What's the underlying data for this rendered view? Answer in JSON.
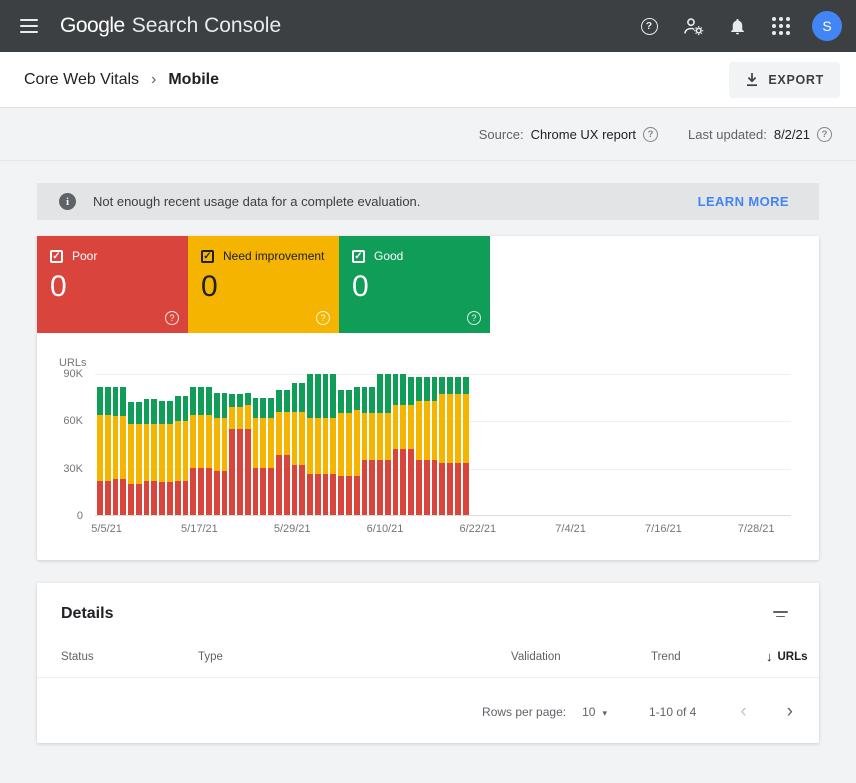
{
  "app_bar": {
    "logo_primary": "Google",
    "logo_secondary": "Search Console",
    "avatar_initial": "S",
    "icons": [
      "menu",
      "help",
      "manage-users",
      "notifications",
      "apps",
      "account-avatar"
    ]
  },
  "breadcrumb": {
    "section": "Core Web Vitals",
    "separator": "›",
    "page": "Mobile",
    "export_label": "EXPORT"
  },
  "meta": {
    "source_label": "Source:",
    "source_value": "Chrome UX report",
    "updated_label": "Last updated:",
    "updated_value": "8/2/21"
  },
  "banner": {
    "message": "Not enough recent usage data for a complete evaluation.",
    "action_label": "LEARN MORE"
  },
  "status_cards": [
    {
      "label": "Poor",
      "value": "0",
      "color": "#d9453d",
      "checked": true
    },
    {
      "label": "Need improvement",
      "value": "0",
      "color": "#f4b400",
      "checked": true
    },
    {
      "label": "Good",
      "value": "0",
      "color": "#0f9d58",
      "checked": true
    }
  ],
  "chart_data": {
    "type": "bar",
    "stacked": true,
    "ylabel": "URLs",
    "y_max": 90000,
    "y_ticks": [
      "90K",
      "60K",
      "30K",
      "0"
    ],
    "x_ticks": [
      "5/5/21",
      "5/17/21",
      "5/29/21",
      "6/10/21",
      "6/22/21",
      "7/4/21",
      "7/16/21",
      "7/28/21"
    ],
    "x_axis_days": 90,
    "x_tick_interval_days": 12,
    "bar_days": 48,
    "legend_position": "top-left-boxes",
    "grid": true,
    "series": [
      {
        "name": "Poor",
        "color": "#d9453d",
        "values": [
          22000,
          22000,
          23000,
          23000,
          20000,
          20000,
          22000,
          22000,
          21000,
          21000,
          22000,
          22000,
          30000,
          30000,
          30000,
          28000,
          28000,
          55000,
          55000,
          55000,
          30000,
          30000,
          30000,
          38000,
          38000,
          32000,
          32000,
          26000,
          26000,
          26000,
          26000,
          25000,
          25000,
          25000,
          35000,
          35000,
          35000,
          35000,
          42000,
          42000,
          42000,
          35000,
          35000,
          35000,
          33000,
          33000,
          33000,
          33000
        ]
      },
      {
        "name": "Need improvement",
        "color": "#f4b400",
        "values": [
          42000,
          42000,
          40000,
          40000,
          38000,
          38000,
          36000,
          36000,
          37000,
          37000,
          38000,
          38000,
          34000,
          34000,
          34000,
          34000,
          34000,
          14000,
          14000,
          15000,
          32000,
          32000,
          32000,
          28000,
          28000,
          34000,
          34000,
          36000,
          36000,
          36000,
          36000,
          40000,
          40000,
          42000,
          30000,
          30000,
          30000,
          30000,
          28000,
          28000,
          28000,
          38000,
          38000,
          38000,
          44000,
          44000,
          44000,
          44000
        ]
      },
      {
        "name": "Good",
        "color": "#0f9d58",
        "values": [
          18000,
          18000,
          19000,
          19000,
          14000,
          14000,
          16000,
          16000,
          15000,
          15000,
          16000,
          16000,
          18000,
          18000,
          18000,
          16000,
          16000,
          8000,
          8000,
          8000,
          13000,
          13000,
          13000,
          14000,
          14000,
          18000,
          18000,
          28000,
          28000,
          28000,
          28000,
          15000,
          15000,
          15000,
          17000,
          17000,
          25000,
          25000,
          20000,
          20000,
          18000,
          15000,
          15000,
          15000,
          11000,
          11000,
          11000,
          11000
        ]
      }
    ]
  },
  "details": {
    "title": "Details",
    "columns": [
      "Status",
      "Type",
      "Validation",
      "Trend",
      "URLs"
    ],
    "sort_column": "URLs",
    "pagination": {
      "rows_per_page_label": "Rows per page:",
      "rows_per_page_value": "10",
      "range_label": "1-10 of 4"
    }
  },
  "colors": {
    "app_bar_bg": "#3c4043",
    "poor": "#d9453d",
    "need_improvement": "#f4b400",
    "good": "#0f9d58",
    "link_blue": "#4285f4",
    "banner_bg": "#e3e4e6",
    "page_bg": "#f1f3f4",
    "avatar_bg": "#4285f4"
  }
}
